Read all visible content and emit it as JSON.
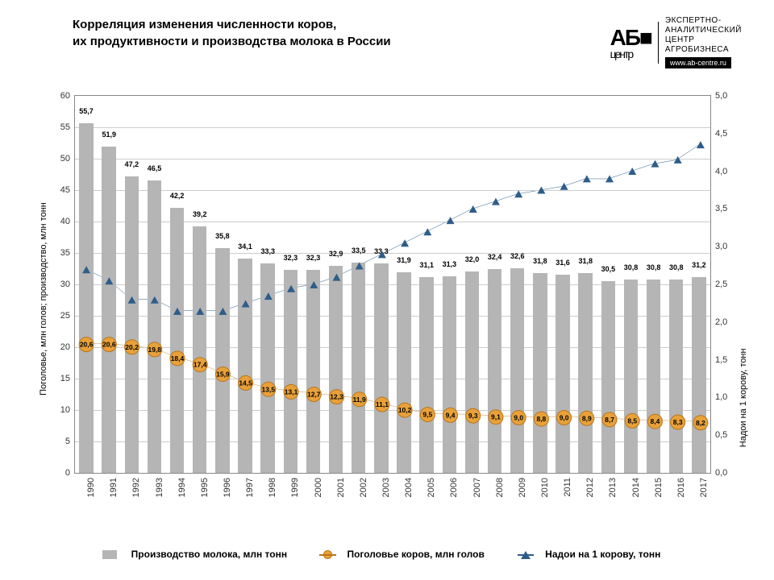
{
  "title_line1": "Корреляция изменения численности коров,",
  "title_line2": "их продуктивности и производства молока в России",
  "logo": {
    "ab": "АБ",
    "centre": "центр",
    "desc1": "ЭКСПЕРТНО-",
    "desc2": "АНАЛИТИЧЕСКИЙ",
    "desc3": "ЦЕНТР",
    "desc4": "АГРОБИЗНЕСА",
    "url": "www.ab-centre.ru"
  },
  "axis_left_title": "Поголовье, млн голов; производство, млн тонн",
  "axis_right_title": "Надои на 1 корову, тонн",
  "y_left": {
    "min": 0,
    "max": 60,
    "step": 5
  },
  "y_right": {
    "min": 0,
    "max": 5,
    "step": 0.5
  },
  "years": [
    1990,
    1991,
    1992,
    1993,
    1994,
    1995,
    1996,
    1997,
    1998,
    1999,
    2000,
    2001,
    2002,
    2003,
    2004,
    2005,
    2006,
    2007,
    2008,
    2009,
    2010,
    2011,
    2012,
    2013,
    2014,
    2015,
    2016,
    2017
  ],
  "bars": [
    55.7,
    51.9,
    47.2,
    46.5,
    42.2,
    39.2,
    35.8,
    34.1,
    33.3,
    32.3,
    32.3,
    32.9,
    33.5,
    33.3,
    31.9,
    31.1,
    31.3,
    32.0,
    32.4,
    32.6,
    31.8,
    31.6,
    31.8,
    30.5,
    30.8,
    30.8,
    30.8,
    31.2
  ],
  "circles": [
    20.6,
    20.6,
    20.2,
    19.8,
    18.4,
    17.4,
    15.9,
    14.5,
    13.5,
    13.1,
    12.7,
    12.3,
    11.9,
    11.1,
    10.2,
    9.5,
    9.4,
    9.3,
    9.1,
    9.0,
    8.8,
    9.0,
    8.9,
    8.7,
    8.5,
    8.4,
    8.3,
    8.2
  ],
  "triangles": [
    2.7,
    2.55,
    2.3,
    2.3,
    2.15,
    2.15,
    2.15,
    2.25,
    2.35,
    2.45,
    2.5,
    2.6,
    2.75,
    2.9,
    3.05,
    3.2,
    3.35,
    3.5,
    3.6,
    3.7,
    3.75,
    3.8,
    3.9,
    3.9,
    4.0,
    4.1,
    4.15,
    4.35
  ],
  "bar_color": "#b5b5b5",
  "circle_color": "#e8a13a",
  "circle_border": "#b8751a",
  "triangle_color": "#2e5d8a",
  "grid_color": "#cccccc",
  "legend": {
    "bars": "Производство молока, млн тонн",
    "circles": "Поголовье коров, млн голов",
    "triangles": "Надои на 1 корову, тонн"
  }
}
